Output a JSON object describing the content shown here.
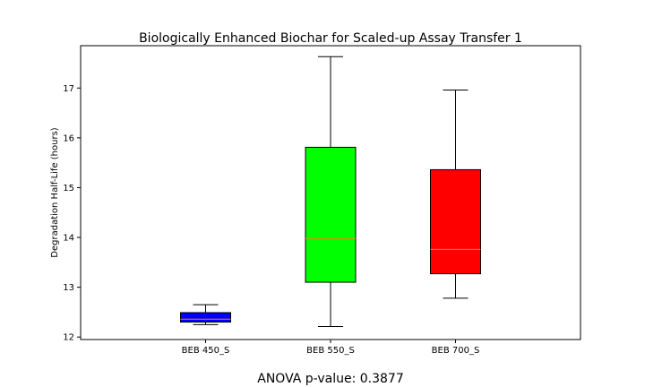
{
  "chart_data": {
    "type": "box",
    "title": "Biologically Enhanced Biochar for Scaled-up Assay Transfer 1",
    "xlabel": "",
    "ylabel": "Degradation Half-Life (hours)",
    "ylim": [
      11.95,
      17.85
    ],
    "yticks": [
      12,
      13,
      14,
      15,
      16,
      17
    ],
    "grid": false,
    "categories": [
      "BEB 450_S",
      "BEB 550_S",
      "BEB 700_S"
    ],
    "boxes": [
      {
        "category": "BEB 450_S",
        "whisker_low": 12.25,
        "q1": 12.3,
        "median": 12.36,
        "q3": 12.49,
        "whisker_high": 12.65,
        "color": "#0000ff"
      },
      {
        "category": "BEB 550_S",
        "whisker_low": 12.21,
        "q1": 13.1,
        "median": 13.98,
        "q3": 15.81,
        "whisker_high": 17.63,
        "color": "#00ff00"
      },
      {
        "category": "BEB 700_S",
        "whisker_low": 12.78,
        "q1": 13.27,
        "median": 13.76,
        "q3": 15.36,
        "whisker_high": 16.96,
        "color": "#ff0000"
      }
    ],
    "median_color": "#ff7f0e",
    "annotation": "ANOVA p-value: 0.3877"
  }
}
